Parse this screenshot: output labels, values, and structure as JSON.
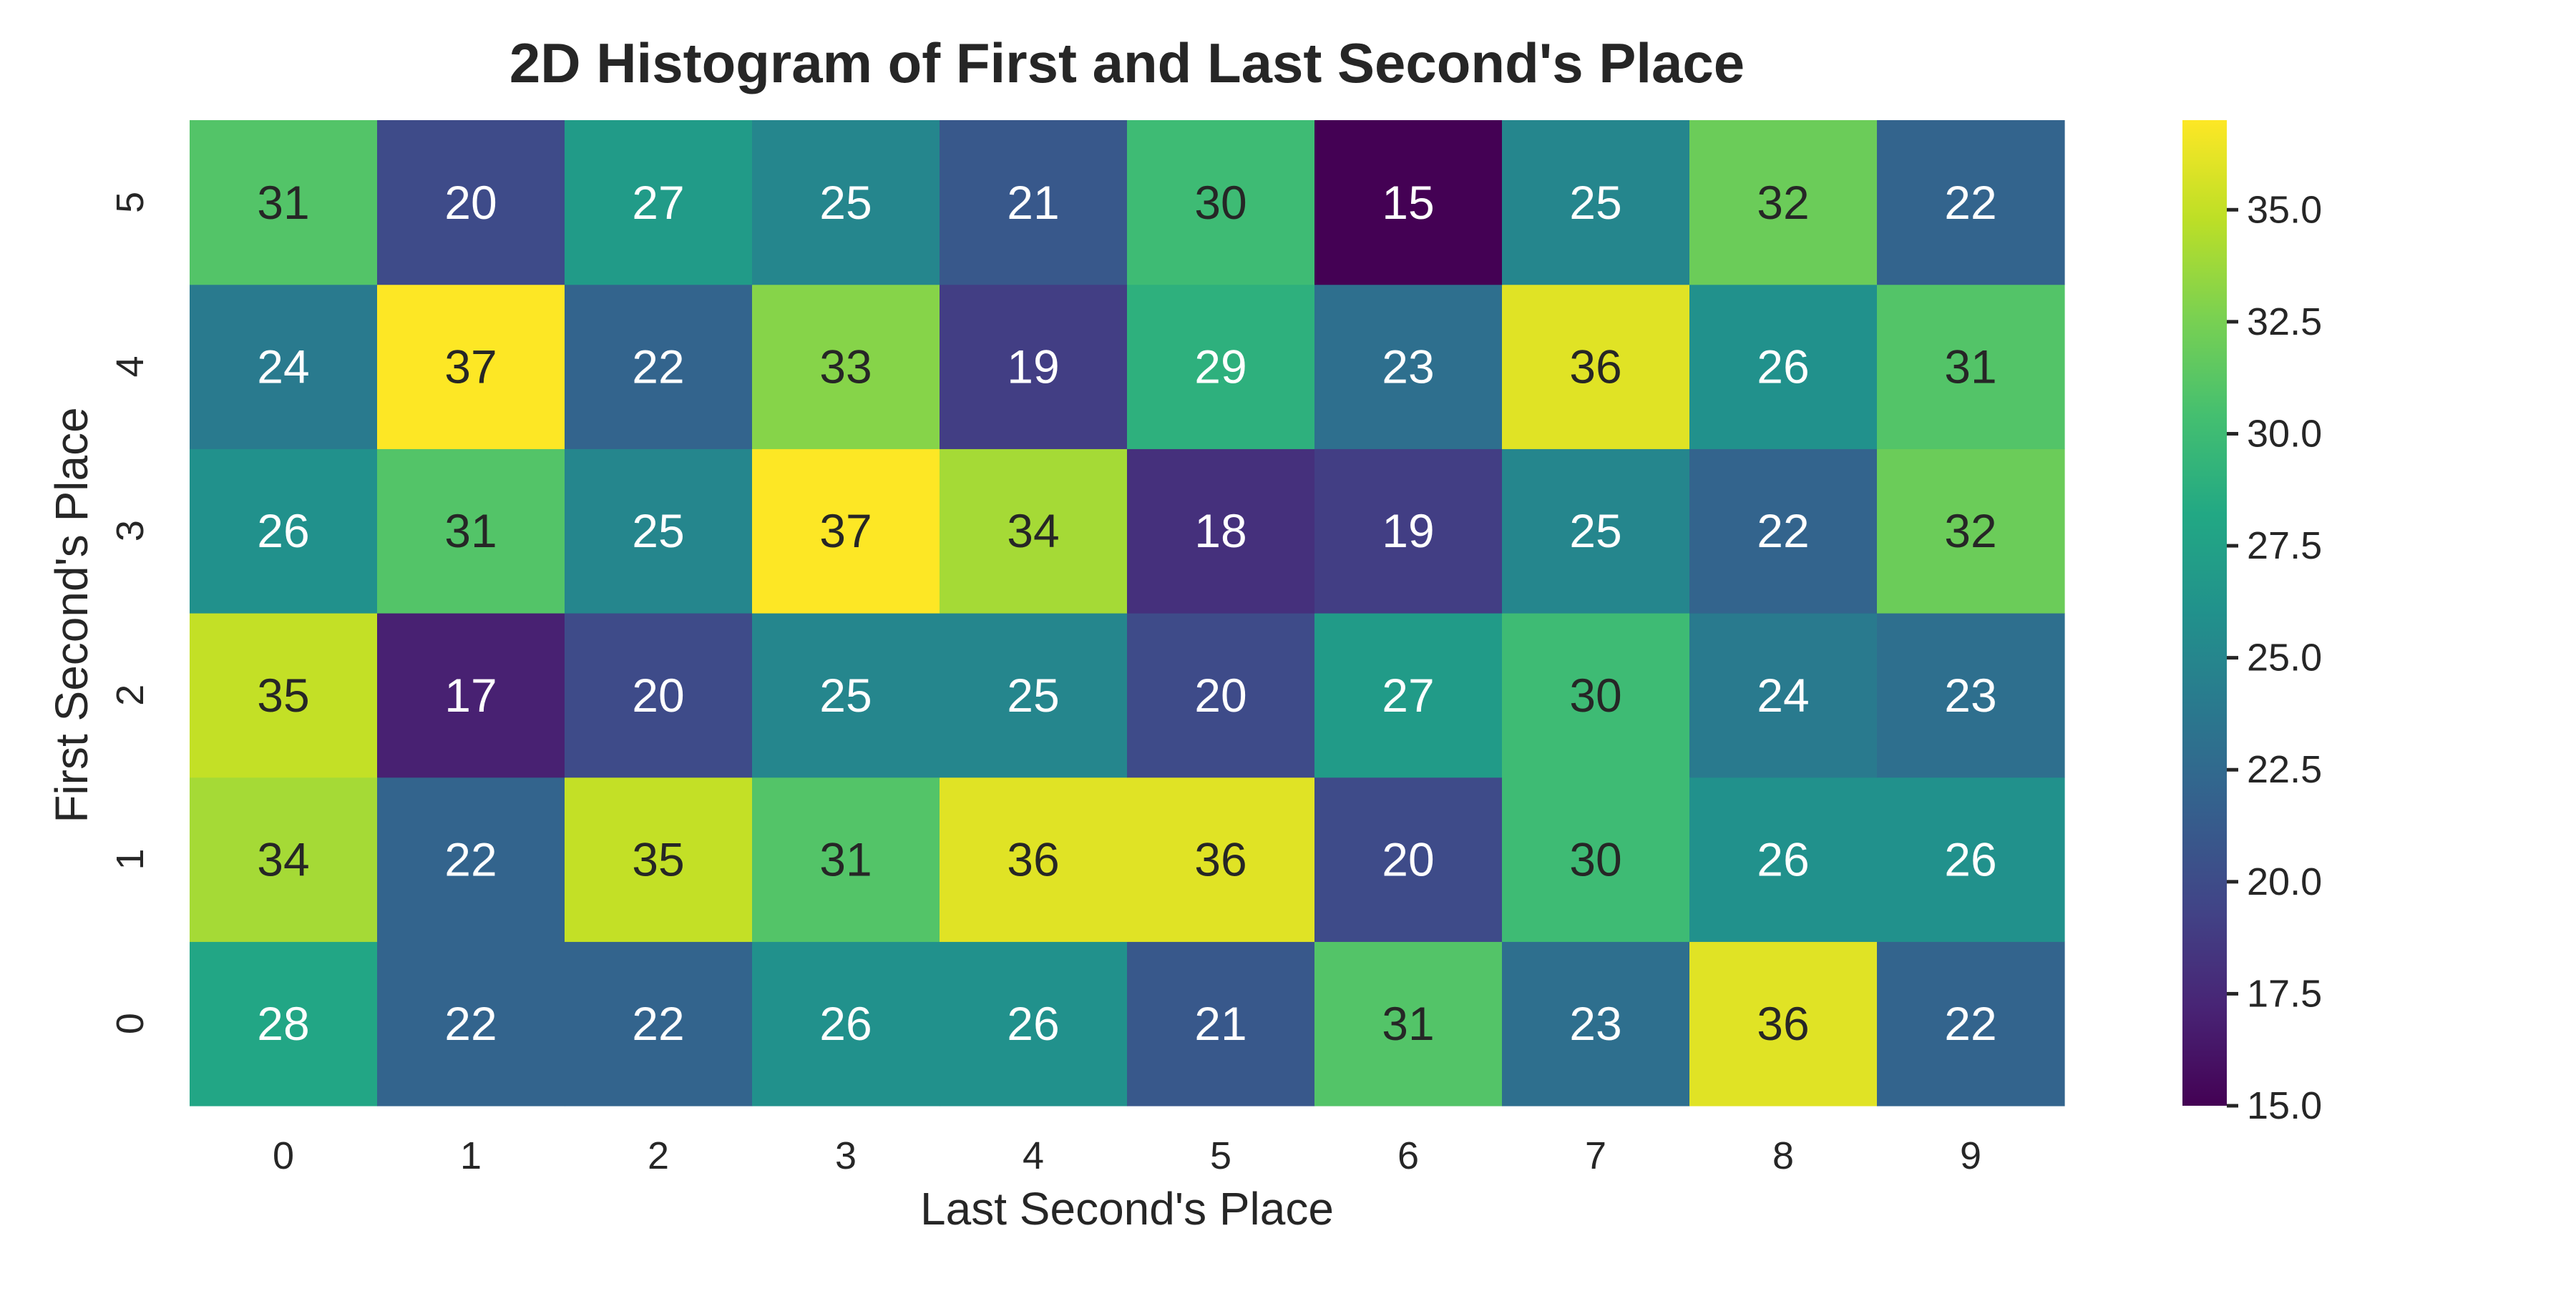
{
  "chart_data": {
    "type": "heatmap",
    "title": "2D Histogram of First and Last Second's Place",
    "xlabel": "Last Second's Place",
    "ylabel": "First Second's Place",
    "x_categories": [
      "0",
      "1",
      "2",
      "3",
      "4",
      "5",
      "6",
      "7",
      "8",
      "9"
    ],
    "y_categories": [
      "0",
      "1",
      "2",
      "3",
      "4",
      "5"
    ],
    "values": [
      [
        28,
        22,
        22,
        26,
        26,
        21,
        31,
        23,
        36,
        22
      ],
      [
        34,
        22,
        35,
        31,
        36,
        36,
        20,
        30,
        26,
        26
      ],
      [
        35,
        17,
        20,
        25,
        25,
        20,
        27,
        30,
        24,
        23
      ],
      [
        26,
        31,
        25,
        37,
        34,
        18,
        19,
        25,
        22,
        32
      ],
      [
        24,
        37,
        22,
        33,
        19,
        29,
        23,
        36,
        26,
        31
      ],
      [
        31,
        20,
        27,
        25,
        21,
        30,
        15,
        25,
        32,
        22
      ]
    ],
    "y_order": "bottom-to-top",
    "colormap": "viridis",
    "vmin": 15,
    "vmax": 37,
    "colorbar_ticks": [
      "15.0",
      "17.5",
      "20.0",
      "22.5",
      "25.0",
      "27.5",
      "30.0",
      "32.5",
      "35.0"
    ],
    "annotate_cells": true,
    "grid": false,
    "legend": "colorbar-right"
  }
}
